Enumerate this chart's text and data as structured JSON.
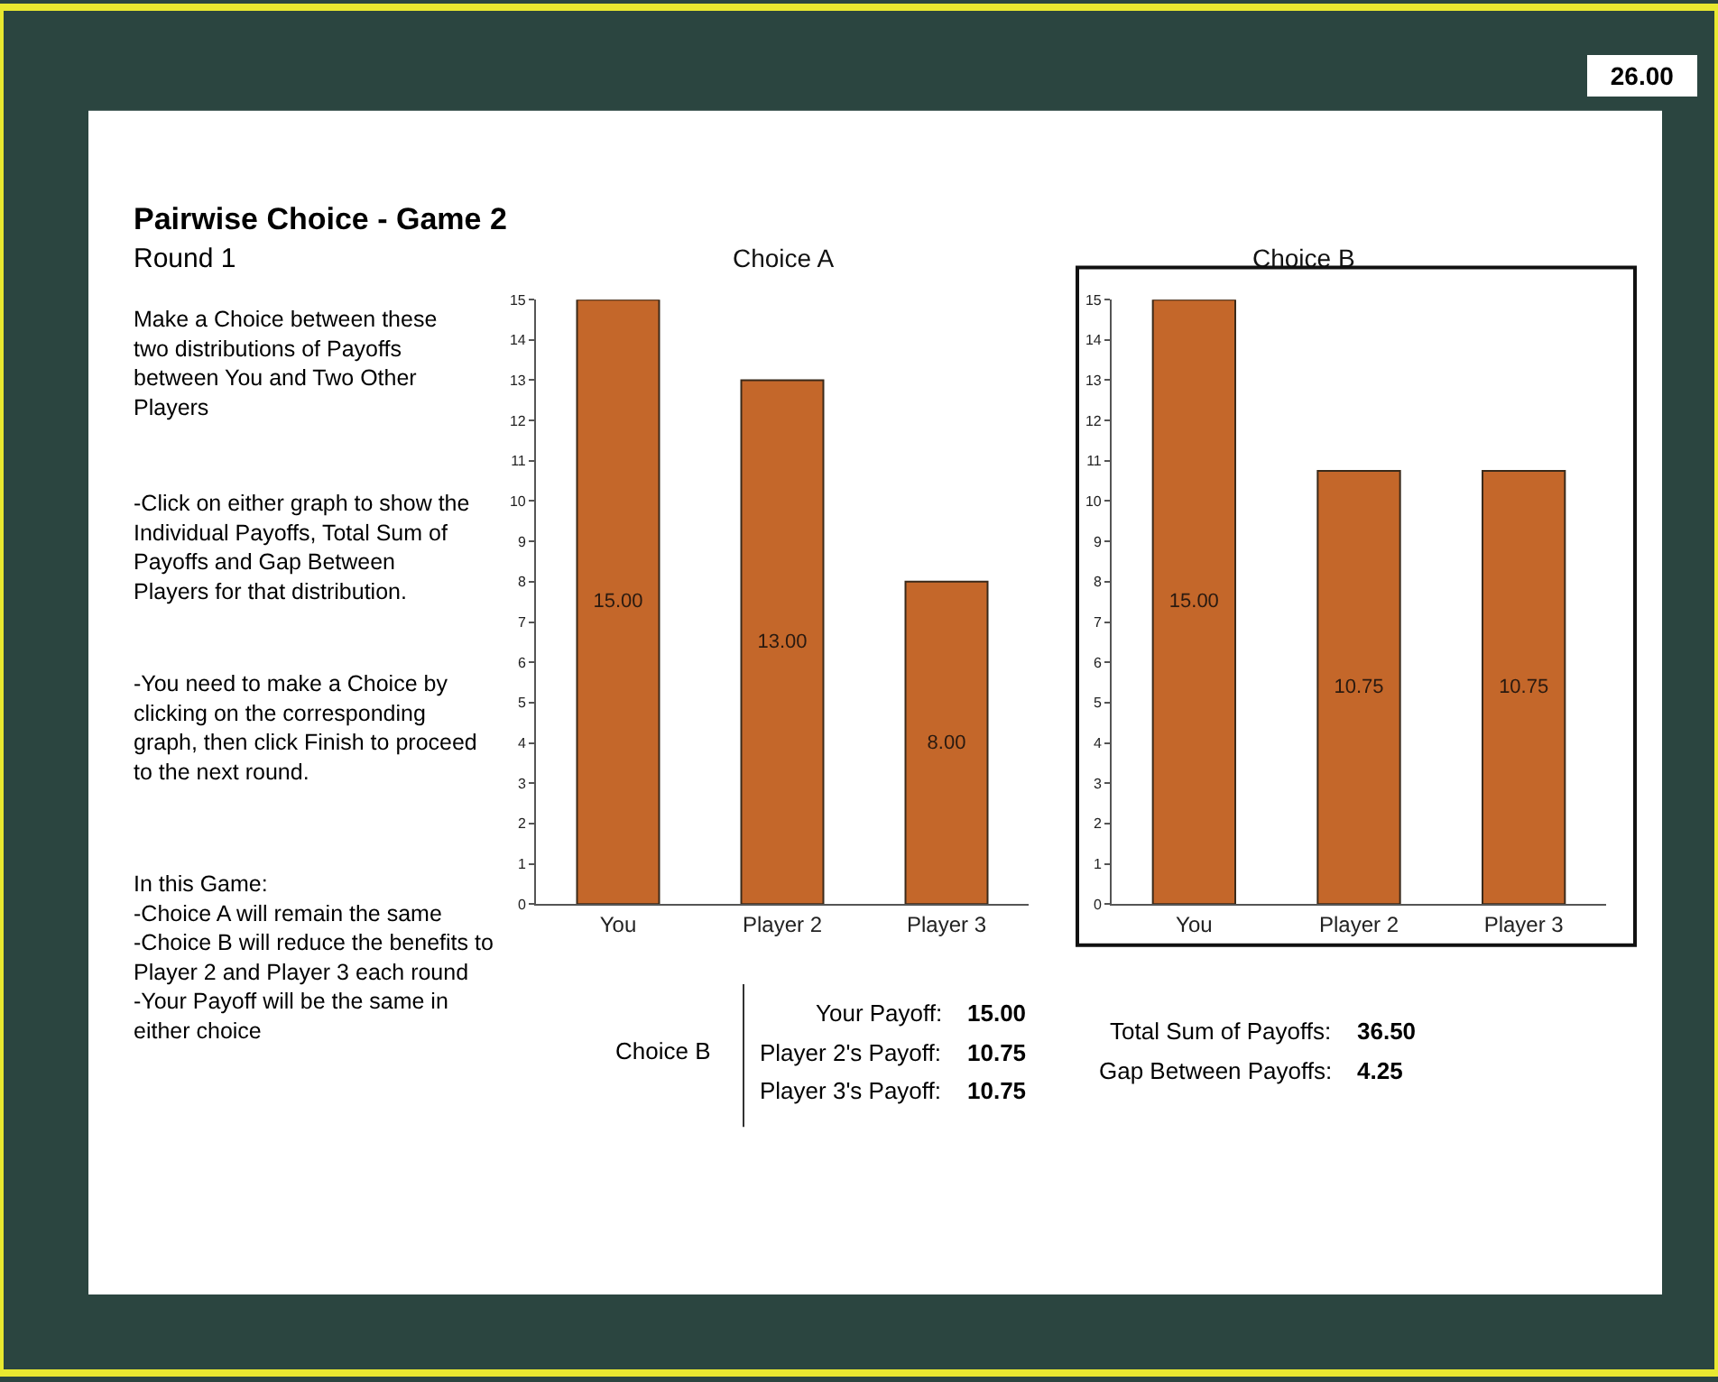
{
  "chart_data": [
    {
      "type": "other",
      "title": "Pairwise Choice - Game 2",
      "subtitle": "Round 1",
      "annotations": [
        "26.00",
        "Make a Choice between these\ntwo distributions of Payoffs\nbetween You and Two Other\nPlayers",
        "-Click on either graph to show the\nIndividual Payoffs, Total Sum of\nPayoffs and Gap Between\nPlayers for that distribution.",
        "-You need to make a Choice by\nclicking on the corresponding\ngraph, then click Finish to proceed\nto the next round.",
        "In this Game:\n-Choice A will remain the same\n-Choice B will reduce the benefits to\nPlayer 2 and Player 3 each round\n-Your Payoff will be the same in\neither choice"
      ]
    },
    {
      "type": "bar",
      "title": "Choice A",
      "categories": [
        "You",
        "Player 2",
        "Player 3"
      ],
      "values": [
        15,
        13,
        8
      ],
      "value_labels": [
        "15.00",
        "13.00",
        "8.00"
      ],
      "color": "#c4672a",
      "ylim": [
        0,
        15
      ],
      "yticks": [
        0,
        1,
        2,
        3,
        4,
        5,
        6,
        7,
        8,
        9,
        10,
        11,
        12,
        13,
        14,
        15
      ]
    },
    {
      "type": "bar",
      "title": "Choice B",
      "categories": [
        "You",
        "Player 2",
        "Player 3"
      ],
      "values": [
        15,
        10.75,
        10.75
      ],
      "value_labels": [
        "15.00",
        "10.75",
        "10.75"
      ],
      "color": "#c4672a",
      "ylim": [
        0,
        15
      ],
      "yticks": [
        0,
        1,
        2,
        3,
        4,
        5,
        6,
        7,
        8,
        9,
        10,
        11,
        12,
        13,
        14,
        15
      ]
    },
    {
      "type": "other",
      "annotations": [
        "Choice B",
        "Your Payoff:",
        "Player 2's Payoff:",
        "Player 3's Payoff:",
        "15.00",
        "10.75",
        "10.75",
        "Total Sum of Payoffs:",
        "Gap Between Payoffs:",
        "36.50",
        "4.25"
      ]
    }
  ]
}
